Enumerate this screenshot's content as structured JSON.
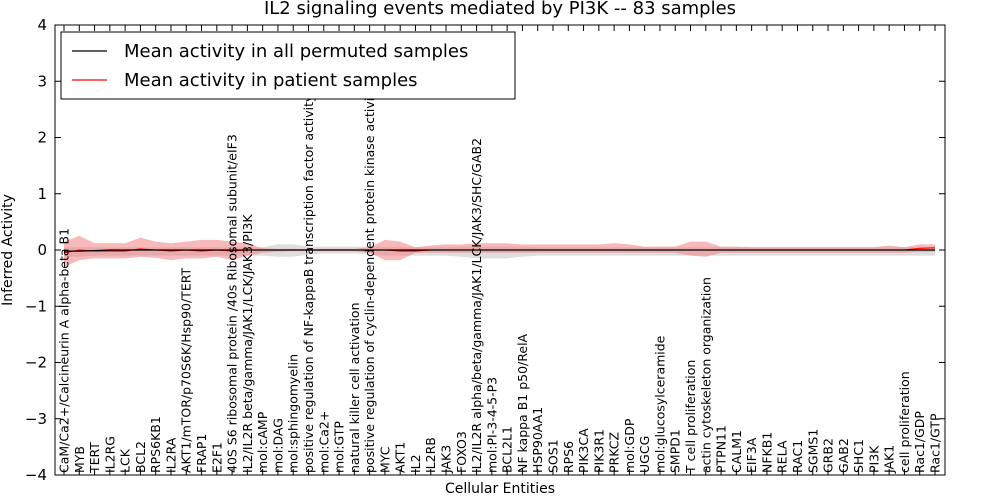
{
  "chart_data": {
    "type": "line",
    "title": "IL2 signaling events mediated by PI3K -- 83 samples",
    "xlabel": "Cellular Entities",
    "ylabel": "Inferred Activity",
    "ylim": [
      -4,
      4
    ],
    "yticks": [
      -4,
      -3,
      -2,
      -1,
      0,
      1,
      2,
      3,
      4
    ],
    "ytick_labels": [
      "−4",
      "−3",
      "−2",
      "−1",
      "0",
      "1",
      "2",
      "3",
      "4"
    ],
    "grid": false,
    "legend_position": "top-left",
    "categories": [
      "CaM/Ca2+/Calcineurin A alpha-beta B1",
      "MYB",
      "TERT",
      "IL2RG",
      "LCK",
      "BCL2",
      "RPS6KB1",
      "IL2RA",
      "AKT1/mTOR/p70S6K/Hsp90/TERT",
      "FRAP1",
      "E2F1",
      "40S S6 ribosomal protein /40s Ribosomal subunit/eIF3",
      "IL2/IL2R beta/gamma/JAK1/LCK/JAK3/PI3K",
      "mol:cAMP",
      "mol:DAG",
      "mol:sphingomyelin",
      "positive regulation of NF-kappaB transcription factor activity",
      "mol:Ca2+",
      "mol:GTP",
      "natural killer cell activation",
      "positive regulation of cyclin-dependent protein kinase activity",
      "MYC",
      "AKT1",
      "IL2",
      "IL2RB",
      "JAK3",
      "FOXO3",
      "IL2/IL2R alpha/beta/gamma/JAK1/LCK/JAK3/SHC/GAB2",
      "mol:PI-3-4-5-P3",
      "BCL2L1",
      "NF kappa B1 p50/RelA",
      "HSP90AA1",
      "SOS1",
      "RPS6",
      "PIK3CA",
      "PIK3R1",
      "PRKCZ",
      "mol:GDP",
      "UGCG",
      "mol:glucosylceramide",
      "SMPD1",
      "T cell proliferation",
      "actin cytoskeleton organization",
      "PTPN11",
      "CALM1",
      "EIF3A",
      "NFKB1",
      "RELA",
      "RAC1",
      "SGMS1",
      "GRB2",
      "GAB2",
      "SHC1",
      "PI3K",
      "JAK1",
      "cell proliferation",
      "Rac1/GDP",
      "Rac1/GTP"
    ],
    "label_side": [
      "bottom",
      "bottom",
      "bottom",
      "bottom",
      "bottom",
      "bottom",
      "bottom",
      "bottom",
      "bottom",
      "bottom",
      "bottom",
      "bottom",
      "bottom",
      "bottom",
      "bottom",
      "bottom",
      "bottom",
      "bottom",
      "bottom",
      "bottom",
      "bottom",
      "bottom",
      "bottom",
      "bottom",
      "bottom",
      "bottom",
      "bottom",
      "bottom",
      "bottom",
      "bottom",
      "bottom",
      "bottom",
      "bottom",
      "bottom",
      "bottom",
      "bottom",
      "bottom",
      "bottom",
      "bottom",
      "bottom",
      "bottom",
      "bottom",
      "bottom",
      "bottom",
      "bottom",
      "bottom",
      "bottom",
      "bottom",
      "bottom",
      "bottom",
      "bottom",
      "bottom",
      "bottom",
      "bottom",
      "bottom",
      "bottom",
      "bottom",
      "bottom"
    ],
    "series": [
      {
        "name": "Mean activity in all permuted samples",
        "color": "#000000",
        "band_color": "#c8c8c8",
        "values": [
          -0.02,
          -0.02,
          -0.01,
          0,
          0,
          0,
          0,
          0,
          0,
          0,
          0,
          0,
          0,
          0,
          0,
          0,
          0,
          0,
          0,
          0,
          0,
          0,
          0,
          0,
          0,
          0,
          0,
          0,
          0,
          0,
          0,
          0,
          0,
          0,
          0,
          0,
          0,
          0,
          0,
          0,
          0,
          0,
          0,
          0,
          0,
          0,
          0,
          0,
          0,
          0,
          0,
          0,
          0,
          0,
          0,
          0,
          0,
          0
        ],
        "band_lower": [
          -0.12,
          -0.12,
          -0.1,
          -0.1,
          -0.1,
          -0.1,
          -0.1,
          -0.1,
          -0.1,
          -0.1,
          -0.1,
          -0.1,
          -0.1,
          -0.1,
          -0.12,
          -0.12,
          -0.08,
          -0.06,
          -0.06,
          -0.06,
          -0.08,
          -0.1,
          -0.1,
          -0.1,
          -0.1,
          -0.1,
          -0.12,
          -0.15,
          -0.15,
          -0.15,
          -0.12,
          -0.1,
          -0.1,
          -0.1,
          -0.1,
          -0.1,
          -0.1,
          -0.1,
          -0.1,
          -0.1,
          -0.1,
          -0.1,
          -0.1,
          -0.1,
          -0.1,
          -0.1,
          -0.1,
          -0.1,
          -0.1,
          -0.1,
          -0.1,
          -0.1,
          -0.1,
          -0.1,
          -0.1,
          -0.1,
          -0.1,
          -0.1
        ],
        "band_upper": [
          0.05,
          0.05,
          0.05,
          0.05,
          0.05,
          0.05,
          0.05,
          0.05,
          0.05,
          0.05,
          0.05,
          0.05,
          0.05,
          0.05,
          0.1,
          0.1,
          0.06,
          0.06,
          0.06,
          0.06,
          0.06,
          0.06,
          0.05,
          0.05,
          0.05,
          0.05,
          0.06,
          0.06,
          0.06,
          0.06,
          0.06,
          0.05,
          0.05,
          0.05,
          0.05,
          0.05,
          0.05,
          0.05,
          0.05,
          0.05,
          0.05,
          0.05,
          0.05,
          0.05,
          0.05,
          0.05,
          0.05,
          0.05,
          0.05,
          0.05,
          0.05,
          0.05,
          0.05,
          0.05,
          0.05,
          0.05,
          0.05,
          0.05
        ]
      },
      {
        "name": "Mean activity in patient samples",
        "color": "#ff0000",
        "band_color": "#f08080",
        "values": [
          -0.05,
          0,
          -0.02,
          -0.02,
          -0.02,
          0.02,
          0,
          -0.02,
          0,
          -0.02,
          0,
          -0.02,
          0,
          0,
          0,
          0,
          0,
          0,
          0,
          0,
          0,
          0,
          -0.02,
          -0.02,
          0,
          0,
          0,
          0,
          0,
          0,
          0,
          0,
          0,
          0,
          0,
          0,
          0,
          0,
          0,
          0,
          0,
          0,
          0,
          0,
          0,
          0,
          0,
          0,
          0,
          0,
          0,
          0,
          0,
          0,
          0,
          0,
          0.03,
          0.04
        ],
        "band_lower": [
          -0.3,
          -0.18,
          -0.15,
          -0.15,
          -0.15,
          -0.12,
          -0.14,
          -0.18,
          -0.15,
          -0.15,
          -0.12,
          -0.18,
          -0.1,
          -0.05,
          -0.03,
          -0.02,
          -0.02,
          -0.02,
          -0.02,
          -0.02,
          -0.05,
          -0.18,
          -0.18,
          -0.05,
          -0.05,
          -0.05,
          -0.05,
          -0.05,
          -0.05,
          -0.05,
          -0.05,
          -0.05,
          -0.05,
          -0.05,
          -0.05,
          -0.05,
          -0.05,
          -0.05,
          -0.05,
          -0.05,
          -0.05,
          -0.1,
          -0.12,
          -0.05,
          -0.05,
          -0.05,
          -0.05,
          -0.05,
          -0.05,
          -0.05,
          -0.05,
          -0.05,
          -0.05,
          -0.05,
          -0.05,
          -0.05,
          -0.03,
          -0.03
        ],
        "band_upper": [
          0.15,
          0.25,
          0.12,
          0.12,
          0.12,
          0.22,
          0.15,
          0.12,
          0.15,
          0.18,
          0.18,
          0.15,
          0.12,
          0.03,
          0.02,
          0.02,
          0.02,
          0.02,
          0.02,
          0.02,
          0.05,
          0.18,
          0.15,
          0.05,
          0.08,
          0.1,
          0.1,
          0.12,
          0.12,
          0.12,
          0.1,
          0.1,
          0.1,
          0.1,
          0.1,
          0.1,
          0.12,
          0.1,
          0.06,
          0.06,
          0.06,
          0.15,
          0.15,
          0.06,
          0.06,
          0.05,
          0.05,
          0.05,
          0.05,
          0.05,
          0.05,
          0.05,
          0.05,
          0.05,
          0.08,
          0.05,
          0.1,
          0.1
        ]
      }
    ]
  }
}
